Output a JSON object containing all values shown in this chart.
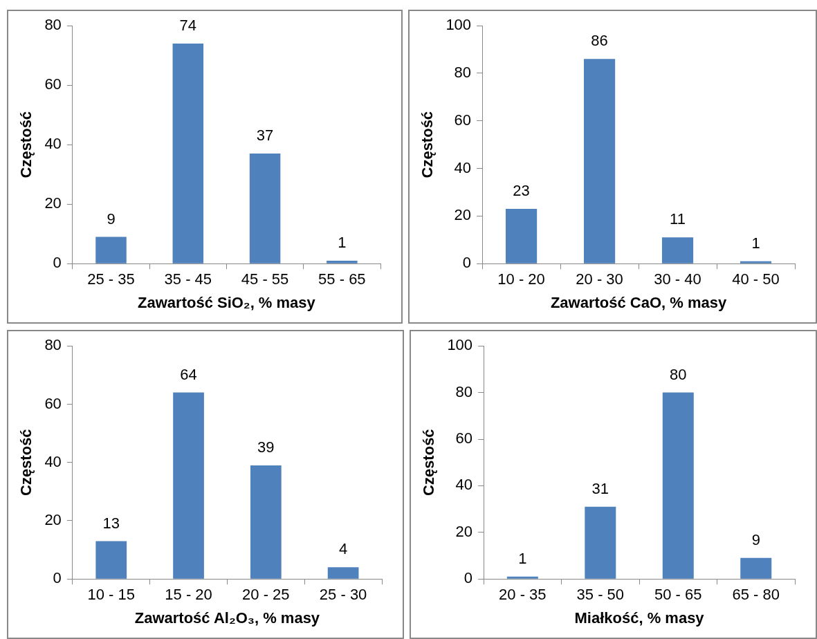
{
  "chart_data": [
    {
      "type": "bar",
      "categories": [
        "25 - 35",
        "35 - 45",
        "45 - 55",
        "55 - 65"
      ],
      "values": [
        9,
        74,
        37,
        1
      ],
      "color": "#4f81bd",
      "xlabel": "Zawartość SiO₂, % masy",
      "ylabel": "Częstość",
      "ylim": [
        0,
        80
      ],
      "yticks": [
        0,
        20,
        40,
        60,
        80
      ],
      "data_labels": true,
      "grid": false,
      "legend": false
    },
    {
      "type": "bar",
      "categories": [
        "10 - 20",
        "20 - 30",
        "30 - 40",
        "40 - 50"
      ],
      "values": [
        23,
        86,
        11,
        1
      ],
      "color": "#4f81bd",
      "xlabel": "Zawartość CaO, % masy",
      "ylabel": "Częstość",
      "ylim": [
        0,
        100
      ],
      "yticks": [
        0,
        20,
        40,
        60,
        80,
        100
      ],
      "data_labels": true,
      "grid": false,
      "legend": false
    },
    {
      "type": "bar",
      "categories": [
        "10 - 15",
        "15 - 20",
        "20 - 25",
        "25 - 30"
      ],
      "values": [
        13,
        64,
        39,
        4
      ],
      "color": "#4f81bd",
      "xlabel": "Zawartość Al₂O₃, % masy",
      "ylabel": "Częstość",
      "ylim": [
        0,
        80
      ],
      "yticks": [
        0,
        20,
        40,
        60,
        80
      ],
      "data_labels": true,
      "grid": false,
      "legend": false
    },
    {
      "type": "bar",
      "categories": [
        "20 - 35",
        "35 - 50",
        "50 - 65",
        "65 - 80"
      ],
      "values": [
        1,
        31,
        80,
        9
      ],
      "color": "#4f81bd",
      "xlabel": "Miałkość, % masy",
      "ylabel": "Częstość",
      "ylim": [
        0,
        100
      ],
      "yticks": [
        0,
        20,
        40,
        60,
        80,
        100
      ],
      "data_labels": true,
      "grid": false,
      "legend": false
    }
  ]
}
